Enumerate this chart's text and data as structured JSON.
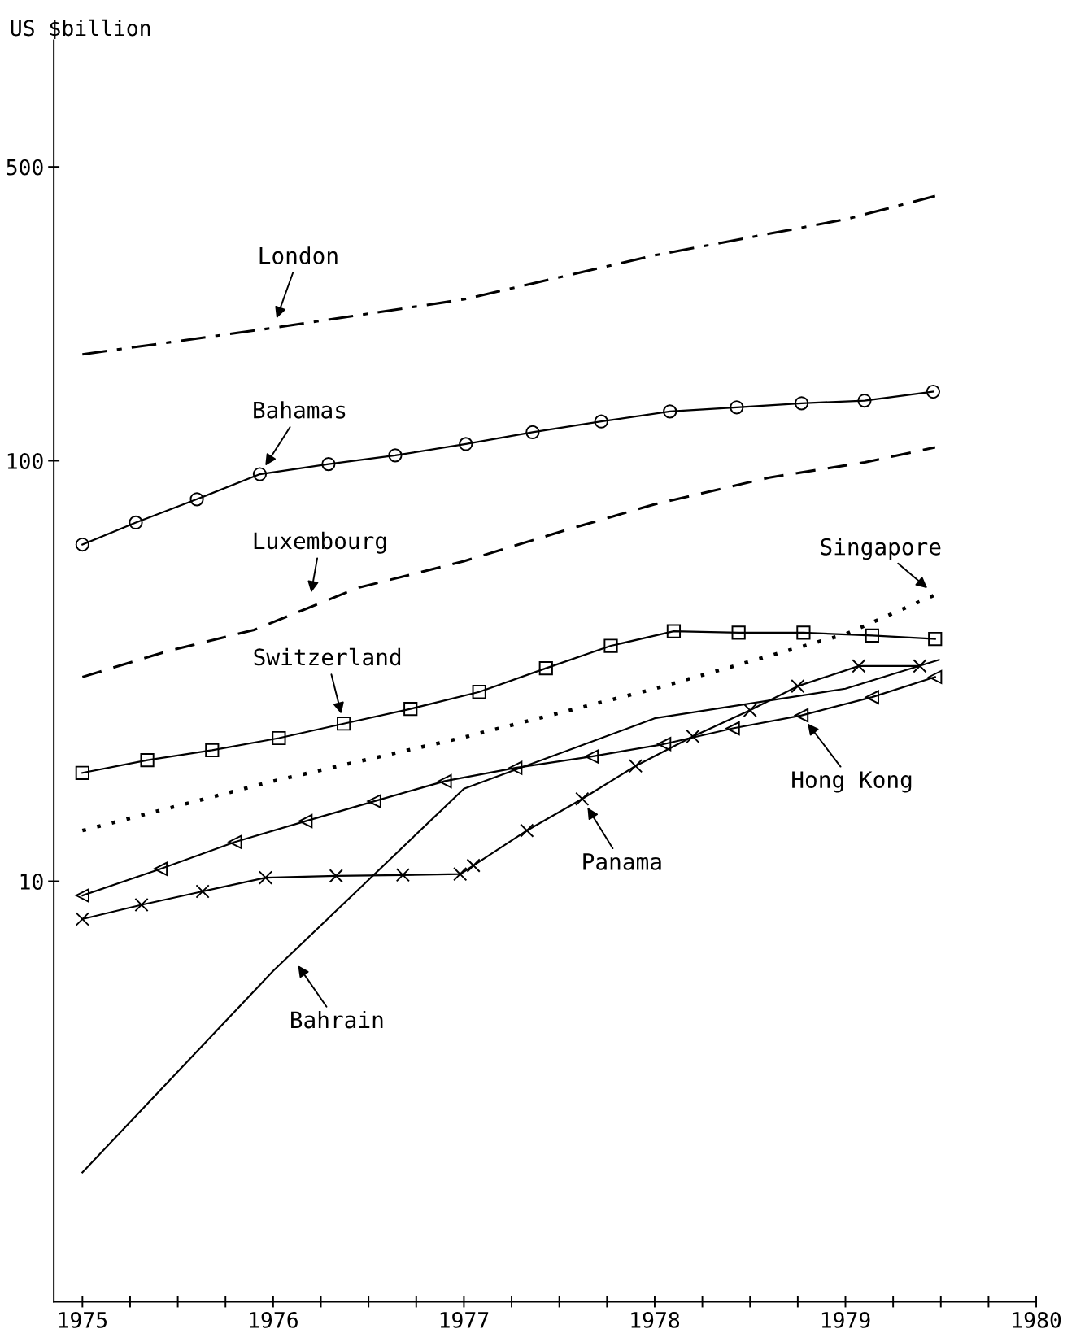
{
  "chart_data": {
    "type": "line",
    "ylabel": "US $billion",
    "log": "y",
    "xlim": [
      1974.85,
      1980
    ],
    "ylim": [
      1,
      1000
    ],
    "xticks": [
      1975,
      {
        "value": 1975.25,
        "label": null
      },
      {
        "value": 1975.5,
        "label": null
      },
      {
        "value": 1975.75,
        "label": null
      },
      1976,
      {
        "value": 1976.25,
        "label": null
      },
      {
        "value": 1976.5,
        "label": null
      },
      {
        "value": 1976.75,
        "label": null
      },
      1977,
      {
        "value": 1977.25,
        "label": null
      },
      {
        "value": 1977.5,
        "label": null
      },
      {
        "value": 1977.75,
        "label": null
      },
      1978,
      {
        "value": 1978.25,
        "label": null
      },
      {
        "value": 1978.5,
        "label": null
      },
      {
        "value": 1978.75,
        "label": null
      },
      1979,
      {
        "value": 1979.25,
        "label": null
      },
      {
        "value": 1979.5,
        "label": null
      },
      {
        "value": 1979.75,
        "label": null
      },
      1980
    ],
    "yticks": [
      10,
      100,
      500
    ],
    "grid": false,
    "legend": false,
    "series": [
      {
        "color": "#000000",
        "line_style": "dashdot",
        "marker": "none",
        "x": [
          1975,
          1976,
          1977,
          1978,
          1979,
          1979.47
        ],
        "values": [
          179,
          207,
          242,
          308,
          375,
          426
        ]
      },
      {
        "color": "#000000",
        "line_style": "solid",
        "marker": "circle",
        "x": [
          1975,
          1975.28,
          1975.6,
          1975.93,
          1976.29,
          1976.64,
          1977.01,
          1977.36,
          1977.72,
          1978.08,
          1978.43,
          1978.77,
          1979.1,
          1979.46
        ],
        "values": [
          63.2,
          71.3,
          81,
          92.9,
          98.2,
          103,
          109.6,
          116.9,
          124,
          131,
          134,
          137,
          139,
          146
        ]
      },
      {
        "color": "#000000",
        "line_style": "dashed",
        "marker": "none",
        "x": [
          1975,
          1975.45,
          1975.9,
          1976.44,
          1977,
          1977.52,
          1978,
          1978.6,
          1979.1,
          1979.47
        ],
        "values": [
          30.6,
          35.3,
          39.6,
          49.8,
          57.7,
          68.1,
          78.8,
          91.2,
          99.1,
          107.6
        ]
      },
      {
        "color": "#000000",
        "line_style": "dotted",
        "marker": "none",
        "x": [
          1975,
          1976,
          1977,
          1978,
          1979,
          1979.47
        ],
        "values": [
          13.2,
          17.3,
          22.0,
          28.7,
          38.7,
          48.0
        ]
      },
      {
        "color": "#000000",
        "line_style": "solid",
        "marker": "square",
        "x": [
          1975,
          1975.34,
          1975.68,
          1976.03,
          1976.37,
          1976.72,
          1977.08,
          1977.43,
          1977.77,
          1978.1,
          1978.44,
          1978.78,
          1979.14,
          1979.47
        ],
        "values": [
          18.1,
          19.4,
          20.5,
          21.9,
          23.7,
          25.7,
          28.2,
          32.1,
          36.3,
          39.3,
          39.0,
          39.0,
          38.4,
          37.7
        ]
      },
      {
        "color": "#000000",
        "line_style": "solid",
        "marker": "triangle",
        "x": [
          1975,
          1975.41,
          1975.8,
          1976.17,
          1976.53,
          1976.9,
          1977.27,
          1977.67,
          1978.05,
          1978.41,
          1978.77,
          1979.14,
          1979.47
        ],
        "values": [
          9.25,
          10.7,
          12.4,
          13.9,
          15.5,
          17.3,
          18.6,
          19.8,
          21.2,
          23.1,
          24.8,
          27.4,
          30.6
        ]
      },
      {
        "color": "#000000",
        "line_style": "solid",
        "marker": "cross",
        "x": [
          1975,
          1975.31,
          1975.63,
          1975.96,
          1976.33,
          1976.68,
          1976.98,
          1977.05,
          1977.33,
          1977.62,
          1977.9,
          1978.2,
          1978.5,
          1978.75,
          1979.07,
          1979.39
        ],
        "values": [
          8.13,
          8.79,
          9.46,
          10.2,
          10.3,
          10.35,
          10.4,
          10.9,
          13.2,
          15.7,
          18.8,
          22.1,
          25.5,
          29.1,
          32.5,
          32.5
        ]
      },
      {
        "color": "#000000",
        "line_style": "solid",
        "marker": "none",
        "x": [
          1975,
          1976,
          1977,
          1978,
          1979,
          1979.49
        ],
        "values": [
          2.03,
          6.12,
          16.6,
          24.4,
          28.7,
          33.6
        ]
      }
    ],
    "annotations": [
      {
        "text": "London",
        "x": 1976,
        "y": 207
      },
      {
        "text": "Bahamas",
        "x": 1975.93,
        "y": 92.9
      },
      {
        "text": "Luxembourg",
        "x": 1976.19,
        "y": 46
      },
      {
        "text": "Singapore",
        "x": 1979.47,
        "y": 48.0
      },
      {
        "text": "Switzerland",
        "x": 1976.37,
        "y": 23.7
      },
      {
        "text": "Hong Kong",
        "x": 1978.77,
        "y": 24.8
      },
      {
        "text": "Panama",
        "x": 1977.62,
        "y": 15.7
      },
      {
        "text": "Bahrain",
        "x": 1976.1,
        "y": 6.6
      }
    ]
  }
}
